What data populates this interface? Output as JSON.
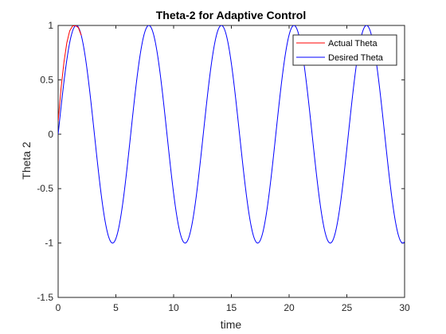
{
  "chart_data": {
    "type": "line",
    "title": "Theta-2 for Adaptive Control",
    "xlabel": "time",
    "ylabel": "Theta 2",
    "xlim": [
      0,
      30
    ],
    "ylim": [
      -1.5,
      1
    ],
    "xticks": [
      0,
      5,
      10,
      15,
      20,
      25,
      30
    ],
    "yticks": [
      -1.5,
      -1,
      -0.5,
      0,
      0.5,
      1
    ],
    "xtick_labels": [
      "0",
      "5",
      "10",
      "15",
      "20",
      "25",
      "30"
    ],
    "ytick_labels": [
      "-1.5",
      "-1",
      "-0.5",
      "0",
      "0.5",
      "1"
    ],
    "legend_position": "top-right",
    "grid": false,
    "series": [
      {
        "name": "Actual Theta",
        "color": "#ff0000",
        "x": [
          0,
          0.25,
          0.5,
          0.75,
          1.0,
          1.25,
          1.5,
          1.75,
          2.0
        ],
        "y": [
          0.12,
          0.42,
          0.66,
          0.84,
          0.95,
          0.995,
          0.998,
          0.98,
          0.91
        ]
      },
      {
        "name": "Desired Theta",
        "color": "#0000ff",
        "function": "sin",
        "amplitude": 1,
        "period": 6.2832,
        "x_range": [
          0,
          30
        ],
        "peaks_x": [
          1.57,
          7.85,
          14.14,
          20.42,
          26.7
        ],
        "troughs_x": [
          4.71,
          11.0,
          17.28,
          23.56,
          29.85
        ]
      }
    ]
  }
}
